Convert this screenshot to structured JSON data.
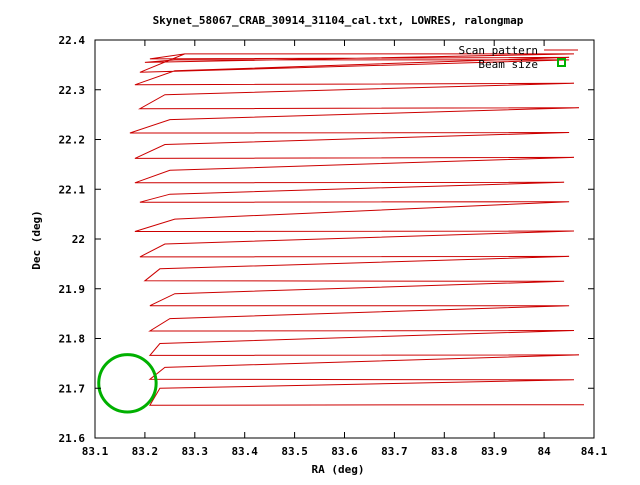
{
  "chart_data": {
    "type": "line",
    "title": "Skynet_58067_CRAB_30914_31104_cal.txt, LOWRES, ralongmap",
    "xlabel": "RA (deg)",
    "ylabel": "Dec (deg)",
    "xlim": [
      83.1,
      84.1
    ],
    "ylim": [
      21.6,
      22.4
    ],
    "xticks": [
      "83.1",
      "83.2",
      "83.3",
      "83.4",
      "83.5",
      "83.6",
      "83.7",
      "83.8",
      "83.9",
      "84",
      "84.1"
    ],
    "yticks": [
      "21.6",
      "21.7",
      "21.8",
      "21.9",
      "22",
      "22.1",
      "22.2",
      "22.3",
      "22.4"
    ],
    "grid": false,
    "legend_position": "top-right",
    "series": [
      {
        "name": "Scan pattern",
        "color": "#cc0000",
        "style": "line",
        "x": [
          84.08,
          83.21,
          83.23,
          84.06,
          83.21,
          83.24,
          84.07,
          83.21,
          83.23,
          84.06,
          83.21,
          83.25,
          84.05,
          83.21,
          83.26,
          84.04,
          83.2,
          83.23,
          84.05,
          83.19,
          83.24,
          84.06,
          83.18,
          83.26,
          84.05,
          83.19,
          83.25,
          84.04,
          83.18,
          83.25,
          84.06,
          83.18,
          83.24,
          84.05,
          83.17,
          83.25,
          84.07,
          83.19,
          83.24,
          84.06,
          83.18,
          83.26,
          84.05,
          83.21,
          83.28,
          84.06,
          83.2,
          83.26,
          84.05,
          83.19,
          83.28
        ],
        "y": [
          21.667,
          21.666,
          21.7,
          21.717,
          21.718,
          21.742,
          21.767,
          21.766,
          21.79,
          21.816,
          21.815,
          21.84,
          21.866,
          21.866,
          21.89,
          21.915,
          21.916,
          21.94,
          21.965,
          21.964,
          21.99,
          22.016,
          22.015,
          22.04,
          22.075,
          22.074,
          22.09,
          22.114,
          22.113,
          22.138,
          22.164,
          22.162,
          22.19,
          22.214,
          22.213,
          22.24,
          22.264,
          22.262,
          22.29,
          22.313,
          22.31,
          22.338,
          22.365,
          22.362,
          22.372,
          22.372,
          22.355,
          22.36,
          22.36,
          22.335,
          22.372
        ]
      },
      {
        "name": "Beam size",
        "color": "#00b000",
        "style": "circle",
        "center": [
          83.165,
          21.71
        ],
        "diameter_deg": 0.115
      }
    ]
  }
}
